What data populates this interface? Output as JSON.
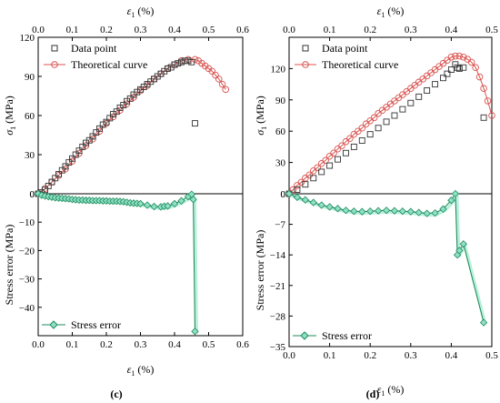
{
  "colors": {
    "theory": "#d9534f",
    "data_point": "#333333",
    "error_line": "#1e8c5a",
    "error_fill": "#8fe0c7",
    "error_shadow": "#b9f0de"
  },
  "chart_data": [
    {
      "type": "line",
      "panel_label": "(c)",
      "top": {
        "xlabel_top": "ε1 (%)",
        "ylabel": "σ1 (MPa)",
        "xlim": [
          0,
          0.6
        ],
        "xticks": [
          "0.0",
          "0.1",
          "0.2",
          "0.3",
          "0.4",
          "0.5",
          "0.6"
        ],
        "ylim": [
          0,
          120
        ],
        "yticks": [
          "0",
          "30",
          "60",
          "90",
          "120"
        ],
        "legend": [
          "Data point",
          "Theoretical curve"
        ],
        "legend_position": "top-left",
        "series": [
          {
            "name": "Data point",
            "marker": "square",
            "x": [
              0.0,
              0.01,
              0.02,
              0.03,
              0.04,
              0.05,
              0.06,
              0.07,
              0.08,
              0.09,
              0.1,
              0.11,
              0.12,
              0.13,
              0.14,
              0.15,
              0.16,
              0.17,
              0.18,
              0.19,
              0.2,
              0.21,
              0.22,
              0.23,
              0.24,
              0.25,
              0.26,
              0.27,
              0.28,
              0.29,
              0.3,
              0.31,
              0.32,
              0.33,
              0.34,
              0.35,
              0.36,
              0.37,
              0.38,
              0.39,
              0.4,
              0.41,
              0.42,
              0.43,
              0.44,
              0.45,
              0.46
            ],
            "y": [
              0,
              1,
              3,
              6,
              9,
              12,
              15,
              18,
              21,
              24,
              27,
              30,
              33,
              36,
              39,
              41,
              44,
              47,
              50,
              53,
              55,
              58,
              61,
              63,
              66,
              68,
              71,
              73,
              76,
              78,
              80,
              82,
              84,
              86,
              88,
              90,
              92,
              94,
              96,
              97,
              99,
              100,
              101,
              102,
              102,
              101,
              54
            ]
          },
          {
            "name": "Theoretical curve",
            "marker": "circle",
            "x": [
              0.0,
              0.02,
              0.04,
              0.06,
              0.08,
              0.1,
              0.12,
              0.14,
              0.16,
              0.18,
              0.2,
              0.22,
              0.24,
              0.26,
              0.28,
              0.3,
              0.32,
              0.34,
              0.36,
              0.38,
              0.4,
              0.42,
              0.44,
              0.46,
              0.47,
              0.48,
              0.49,
              0.5,
              0.51,
              0.52,
              0.53,
              0.54,
              0.55
            ],
            "y": [
              0,
              4,
              9,
              14,
              19,
              25,
              31,
              37,
              42,
              48,
              54,
              59,
              64,
              69,
              74,
              79,
              83,
              88,
              92,
              96,
              99,
              102,
              103,
              103,
              102,
              100,
              98,
              96,
              94,
              91,
              88,
              84,
              80
            ]
          }
        ]
      },
      "bottom": {
        "xlabel": "ε1 (%)",
        "ylabel": "Stress error (MPa)",
        "xlim": [
          0,
          0.6
        ],
        "xticks": [
          "0.0",
          "0.1",
          "0.2",
          "0.3",
          "0.4",
          "0.5",
          "0.6"
        ],
        "ylim": [
          -50,
          0
        ],
        "yticks": [
          "0",
          "-10",
          "-20",
          "-30",
          "-40"
        ],
        "legend": [
          "Stress error"
        ],
        "legend_position": "bottom-left",
        "series": [
          {
            "name": "Stress error",
            "marker": "diamond",
            "x": [
              0.0,
              0.01,
              0.02,
              0.03,
              0.04,
              0.05,
              0.06,
              0.07,
              0.08,
              0.09,
              0.1,
              0.11,
              0.12,
              0.13,
              0.14,
              0.15,
              0.16,
              0.17,
              0.18,
              0.19,
              0.2,
              0.21,
              0.22,
              0.23,
              0.24,
              0.25,
              0.26,
              0.27,
              0.28,
              0.29,
              0.3,
              0.32,
              0.34,
              0.36,
              0.37,
              0.38,
              0.4,
              0.42,
              0.44,
              0.45,
              0.455,
              0.46
            ],
            "y": [
              0,
              -0.5,
              -0.8,
              -1.0,
              -1.2,
              -1.4,
              -1.5,
              -1.6,
              -1.7,
              -1.8,
              -2.0,
              -2.1,
              -2.2,
              -2.2,
              -2.3,
              -2.3,
              -2.4,
              -2.4,
              -2.4,
              -2.5,
              -2.5,
              -2.6,
              -2.6,
              -2.6,
              -2.7,
              -2.8,
              -3.0,
              -3.2,
              -3.3,
              -3.4,
              -3.5,
              -4.0,
              -4.5,
              -4.6,
              -4.4,
              -4.3,
              -3.5,
              -2.5,
              -1.0,
              -0.2,
              -2.0,
              -48.5
            ]
          }
        ]
      }
    },
    {
      "type": "line",
      "panel_label": "(d)",
      "top": {
        "xlabel_top": "ε1 (%)",
        "ylabel": "σ1 (MPa)",
        "xlim": [
          0,
          0.5
        ],
        "xticks": [
          "0.0",
          "0.1",
          "0.2",
          "0.3",
          "0.4",
          "0.5"
        ],
        "ylim": [
          0,
          150
        ],
        "yticks": [
          "0",
          "30",
          "60",
          "90",
          "120"
        ],
        "legend": [
          "Data point",
          "Theoretical curve"
        ],
        "legend_position": "top-left",
        "series": [
          {
            "name": "Data point",
            "marker": "square",
            "x": [
              0.0,
              0.02,
              0.04,
              0.06,
              0.08,
              0.1,
              0.12,
              0.14,
              0.16,
              0.18,
              0.2,
              0.22,
              0.24,
              0.26,
              0.28,
              0.3,
              0.32,
              0.34,
              0.36,
              0.38,
              0.39,
              0.4,
              0.41,
              0.415,
              0.42,
              0.43,
              0.48
            ],
            "y": [
              0,
              4,
              9,
              15,
              21,
              27,
              33,
              39,
              45,
              51,
              57,
              63,
              69,
              75,
              81,
              87,
              93,
              99,
              105,
              111,
              115,
              119,
              124,
              121,
              120,
              121,
              73
            ]
          },
          {
            "name": "Theoretical curve",
            "marker": "circle",
            "x": [
              0.0,
              0.01,
              0.02,
              0.03,
              0.04,
              0.05,
              0.06,
              0.07,
              0.08,
              0.09,
              0.1,
              0.11,
              0.12,
              0.13,
              0.14,
              0.15,
              0.16,
              0.17,
              0.18,
              0.19,
              0.2,
              0.21,
              0.22,
              0.23,
              0.24,
              0.25,
              0.26,
              0.27,
              0.28,
              0.29,
              0.3,
              0.31,
              0.32,
              0.33,
              0.34,
              0.35,
              0.36,
              0.37,
              0.38,
              0.39,
              0.4,
              0.41,
              0.42,
              0.43,
              0.44,
              0.45,
              0.46,
              0.47,
              0.48,
              0.49,
              0.5
            ],
            "y": [
              0,
              4,
              8,
              11,
              15,
              18,
              22,
              25,
              29,
              32,
              36,
              39,
              43,
              46,
              50,
              53,
              57,
              60,
              63,
              67,
              70,
              73,
              77,
              80,
              83,
              86,
              89,
              92,
              95,
              98,
              101,
              104,
              107,
              110,
              113,
              116,
              119,
              122,
              125,
              128,
              131,
              132,
              132,
              131,
              129,
              126,
              121,
              112,
              101,
              89,
              75
            ]
          }
        ]
      },
      "bottom": {
        "xlabel": "ε1 (%)",
        "ylabel": "Stress error (MPa)",
        "xlim": [
          0,
          0.5
        ],
        "xticks": [
          "0.0",
          "0.1",
          "0.2",
          "0.3",
          "0.4",
          "0.5"
        ],
        "ylim": [
          -35,
          0
        ],
        "yticks": [
          "0",
          "-7",
          "-14",
          "-21",
          "-28",
          "-35"
        ],
        "legend": [
          "Stress error"
        ],
        "legend_position": "bottom-left",
        "series": [
          {
            "name": "Stress error",
            "marker": "diamond",
            "x": [
              0.0,
              0.02,
              0.04,
              0.06,
              0.08,
              0.1,
              0.12,
              0.14,
              0.16,
              0.18,
              0.2,
              0.22,
              0.24,
              0.26,
              0.28,
              0.3,
              0.32,
              0.34,
              0.36,
              0.38,
              0.4,
              0.41,
              0.415,
              0.42,
              0.43,
              0.48
            ],
            "y": [
              0,
              -0.8,
              -1.4,
              -2.0,
              -2.6,
              -3.0,
              -3.4,
              -3.8,
              -4.0,
              -4.1,
              -4.0,
              -3.9,
              -3.8,
              -3.9,
              -4.0,
              -4.1,
              -4.3,
              -4.5,
              -4.4,
              -3.5,
              -1.5,
              0,
              -14.0,
              -13.0,
              -11.5,
              -29.5
            ]
          }
        ]
      }
    }
  ]
}
